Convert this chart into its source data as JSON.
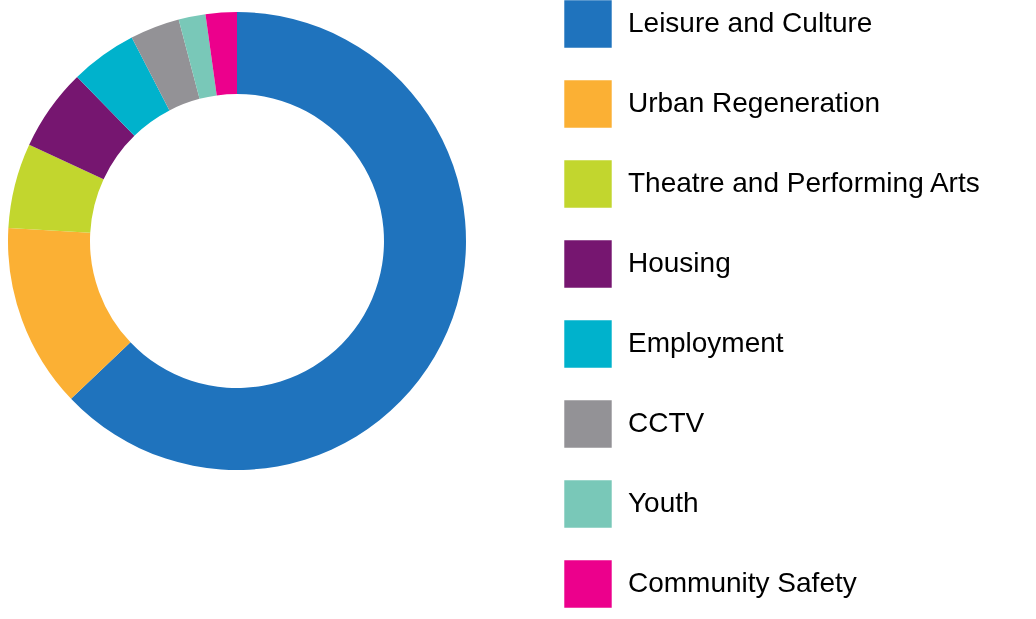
{
  "chart_data": {
    "type": "donut",
    "categories": [
      "Leisure and Culture",
      "Urban Regeneration",
      "Theatre and Performing Arts",
      "Housing",
      "Employment",
      "CCTV",
      "Youth",
      "Community Safety"
    ],
    "values": [
      62.9,
      13.0,
      6.0,
      5.8,
      4.7,
      3.5,
      1.9,
      2.2
    ],
    "colors": [
      "#1f73bd",
      "#fbb034",
      "#c2d62e",
      "#761670",
      "#00b2cc",
      "#939296",
      "#79c8b8",
      "#ec008c"
    ],
    "legend": "right"
  }
}
